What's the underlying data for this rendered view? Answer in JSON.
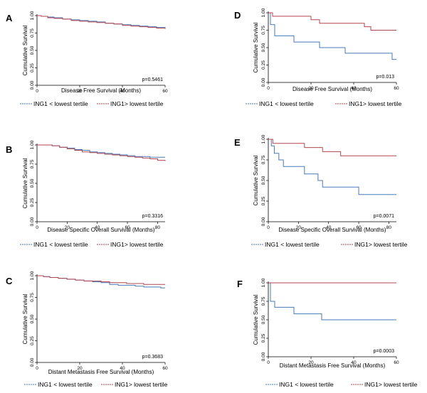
{
  "colors": {
    "low": "#4a7ab8",
    "high": "#b0474f",
    "axis": "#000000"
  },
  "chart_data": [
    {
      "panel": "A",
      "type": "line",
      "xlabel": "Disease Free Survival (Months)",
      "ylabel": "Cumulative Survival",
      "xlim": [
        0,
        60
      ],
      "ylim": [
        0,
        1
      ],
      "xticks": [
        "0",
        "20",
        "40",
        "60"
      ],
      "yticks": [
        "0.00",
        "0.25",
        "0.50",
        "0.75",
        "1.00"
      ],
      "pvalue": "p=0.5461",
      "series": [
        {
          "name": "ING1 < lowest tertile",
          "key": "low",
          "x": [
            0,
            2,
            5,
            8,
            12,
            16,
            20,
            24,
            28,
            32,
            36,
            40,
            44,
            48,
            52,
            56,
            60
          ],
          "y": [
            1.0,
            0.99,
            0.98,
            0.97,
            0.95,
            0.94,
            0.93,
            0.92,
            0.91,
            0.89,
            0.88,
            0.87,
            0.86,
            0.85,
            0.84,
            0.83,
            0.82
          ]
        },
        {
          "name": "ING1> lowest tertile",
          "key": "high",
          "x": [
            0,
            2,
            5,
            8,
            12,
            16,
            20,
            24,
            28,
            32,
            36,
            40,
            44,
            48,
            52,
            56,
            60
          ],
          "y": [
            1.0,
            0.99,
            0.97,
            0.96,
            0.95,
            0.93,
            0.92,
            0.91,
            0.9,
            0.89,
            0.88,
            0.86,
            0.85,
            0.84,
            0.83,
            0.82,
            0.81
          ]
        }
      ]
    },
    {
      "panel": "B",
      "type": "line",
      "xlabel": "Disease Specific Overall Survival (Months)",
      "ylabel": "Cumulative Survival",
      "xlim": [
        0,
        85
      ],
      "ylim": [
        0,
        1
      ],
      "xticks": [
        "0",
        "20",
        "40",
        "60",
        "80"
      ],
      "yticks": [
        "0.00",
        "0.25",
        "0.50",
        "0.75",
        "1.00"
      ],
      "pvalue": "p=0.3316",
      "series": [
        {
          "name": "ING1 < lowest tertile",
          "key": "low",
          "x": [
            0,
            5,
            10,
            15,
            20,
            25,
            30,
            35,
            40,
            45,
            50,
            55,
            60,
            65,
            70,
            75,
            80,
            85
          ],
          "y": [
            1.0,
            1.0,
            0.99,
            0.97,
            0.96,
            0.94,
            0.93,
            0.91,
            0.9,
            0.89,
            0.88,
            0.87,
            0.86,
            0.85,
            0.85,
            0.84,
            0.84,
            0.84
          ]
        },
        {
          "name": "ING1> lowest tertile",
          "key": "high",
          "x": [
            0,
            5,
            10,
            15,
            20,
            25,
            30,
            35,
            40,
            45,
            50,
            55,
            60,
            65,
            70,
            75,
            80,
            85
          ],
          "y": [
            1.0,
            1.0,
            0.99,
            0.97,
            0.95,
            0.93,
            0.91,
            0.9,
            0.89,
            0.88,
            0.87,
            0.86,
            0.85,
            0.84,
            0.83,
            0.82,
            0.8,
            0.79
          ]
        }
      ]
    },
    {
      "panel": "C",
      "type": "line",
      "xlabel": "Distant Metastasis Free Survival (Months)",
      "ylabel": "Cumulative Survival",
      "xlim": [
        0,
        60
      ],
      "ylim": [
        0,
        1
      ],
      "xticks": [
        "0",
        "20",
        "40",
        "60"
      ],
      "yticks": [
        "0.00",
        "0.25",
        "0.50",
        "0.75",
        "1.00"
      ],
      "pvalue": "p=0.3683",
      "series": [
        {
          "name": "ING1 < lowest tertile",
          "key": "low",
          "x": [
            0,
            3,
            6,
            10,
            14,
            18,
            22,
            26,
            30,
            34,
            38,
            42,
            46,
            50,
            54,
            58,
            60
          ],
          "y": [
            1.0,
            0.99,
            0.98,
            0.97,
            0.96,
            0.95,
            0.94,
            0.93,
            0.92,
            0.9,
            0.89,
            0.89,
            0.88,
            0.87,
            0.87,
            0.86,
            0.86
          ]
        },
        {
          "name": "ING1> lowest tertile",
          "key": "high",
          "x": [
            0,
            3,
            6,
            10,
            14,
            18,
            22,
            26,
            30,
            34,
            38,
            42,
            46,
            50,
            54,
            58,
            60
          ],
          "y": [
            1.0,
            0.99,
            0.98,
            0.97,
            0.96,
            0.95,
            0.94,
            0.94,
            0.93,
            0.92,
            0.92,
            0.91,
            0.91,
            0.9,
            0.9,
            0.9,
            0.9
          ]
        }
      ]
    },
    {
      "panel": "D",
      "type": "line",
      "xlabel": "Disease Free Survival (Months)",
      "ylabel": "Cumulative Survival",
      "xlim": [
        0,
        60
      ],
      "ylim": [
        0,
        1
      ],
      "xticks": [
        "0",
        "20",
        "40",
        "60"
      ],
      "yticks": [
        "0.00",
        "0.25",
        "0.50",
        "0.75",
        "1.00"
      ],
      "pvalue": "p=0.013",
      "series": [
        {
          "name": "ING1 < lowest tertile",
          "key": "low",
          "x": [
            0,
            1,
            3,
            12,
            24,
            36,
            58,
            60
          ],
          "y": [
            1.0,
            0.83,
            0.67,
            0.58,
            0.5,
            0.42,
            0.33,
            0.33
          ]
        },
        {
          "name": "ING1> lowest tertile",
          "key": "high",
          "x": [
            0,
            2,
            20,
            24,
            45,
            48,
            60
          ],
          "y": [
            1.0,
            0.95,
            0.9,
            0.85,
            0.8,
            0.75,
            0.75
          ]
        }
      ]
    },
    {
      "panel": "E",
      "type": "line",
      "xlabel": "Disease Specific Overall Survival (Months)",
      "ylabel": "Cumulative Survival",
      "xlim": [
        0,
        85
      ],
      "ylim": [
        0,
        1
      ],
      "xticks": [
        "0",
        "20",
        "40",
        "60",
        "80"
      ],
      "yticks": [
        "0.00",
        "0.25",
        "0.50",
        "0.75",
        "1.00"
      ],
      "pvalue": "p=0.0071",
      "series": [
        {
          "name": "ING1 < lowest tertile",
          "key": "low",
          "x": [
            0,
            2,
            4,
            7,
            10,
            24,
            33,
            36,
            60,
            85
          ],
          "y": [
            1.0,
            0.92,
            0.83,
            0.75,
            0.67,
            0.58,
            0.5,
            0.42,
            0.33,
            0.33
          ]
        },
        {
          "name": "ING1> lowest tertile",
          "key": "high",
          "x": [
            0,
            3,
            24,
            36,
            48,
            85
          ],
          "y": [
            1.0,
            0.95,
            0.9,
            0.85,
            0.8,
            0.8
          ]
        }
      ]
    },
    {
      "panel": "F",
      "type": "line",
      "xlabel": "Distant Metastasis Free Survival (Months)",
      "ylabel": "Cumulative Survival",
      "xlim": [
        0,
        60
      ],
      "ylim": [
        0,
        1
      ],
      "xticks": [
        "0",
        "20",
        "40",
        "60"
      ],
      "yticks": [
        "0.00",
        "0.25",
        "0.50",
        "0.75",
        "1.00"
      ],
      "pvalue": "p=0.0003",
      "series": [
        {
          "name": "ING1 < lowest tertile",
          "key": "low",
          "x": [
            0,
            1,
            3,
            12,
            25,
            60
          ],
          "y": [
            1.0,
            0.75,
            0.67,
            0.58,
            0.5,
            0.5
          ]
        },
        {
          "name": "ING1> lowest tertile",
          "key": "high",
          "x": [
            0,
            60
          ],
          "y": [
            1.0,
            1.0
          ]
        }
      ]
    }
  ]
}
